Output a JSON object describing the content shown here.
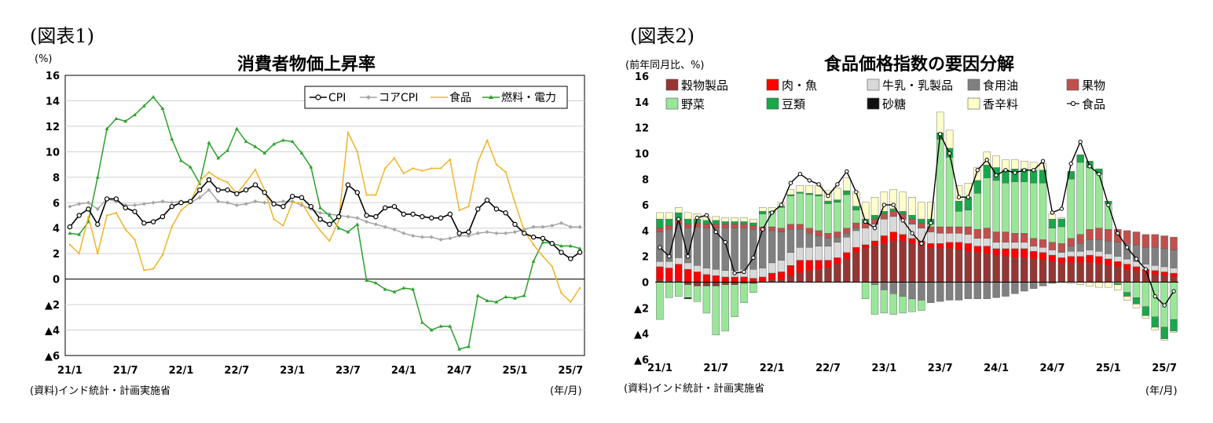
{
  "charts": [
    {
      "label": "(図表1)",
      "title": "消費者物価上昇率",
      "unit": "(%)",
      "source": "(資料)インド統計・計画実施省",
      "xunit": "(年/月)"
    },
    {
      "label": "(図表2)",
      "title": "食品価格指数の要因分解",
      "unit": "(前年同月比、%)",
      "source": "(資料)インド統計・計画実施省",
      "xunit": "(年/月)"
    }
  ],
  "chart_data": [
    {
      "type": "line",
      "title": "消費者物価上昇率",
      "ylabel": "(%)",
      "xlabel": "(年/月)",
      "ylim": [
        -6,
        16
      ],
      "yticks": [
        16,
        14,
        12,
        10,
        8,
        6,
        4,
        2,
        0,
        -2,
        -4,
        -6
      ],
      "ytick_labels": [
        "16",
        "14",
        "12",
        "10",
        "8",
        "6",
        "4",
        "2",
        "0",
        "▲2",
        "▲4",
        "▲6"
      ],
      "x_start": "2021/1",
      "x_tick_labels": [
        "21/1",
        "21/7",
        "22/1",
        "22/7",
        "23/1",
        "23/7",
        "24/1",
        "24/7",
        "25/1",
        "25/7"
      ],
      "grid": true,
      "legend_position": "top-right",
      "colors": {
        "CPI": "#000000",
        "コアCPI": "#a6a6a6",
        "食品": "#f0b429",
        "燃料・電力": "#2ca02c"
      },
      "series": [
        {
          "name": "CPI",
          "values": [
            4.1,
            5.0,
            5.5,
            4.3,
            6.3,
            6.3,
            5.6,
            5.3,
            4.4,
            4.5,
            4.9,
            5.7,
            6.0,
            6.1,
            7.0,
            7.8,
            7.0,
            7.0,
            6.7,
            7.0,
            7.4,
            6.8,
            5.9,
            5.7,
            6.5,
            6.4,
            5.7,
            4.7,
            4.3,
            4.9,
            7.4,
            6.8,
            5.0,
            4.9,
            5.6,
            5.7,
            5.1,
            5.1,
            4.9,
            4.8,
            4.8,
            5.1,
            3.6,
            3.7,
            5.5,
            6.2,
            5.5,
            5.2,
            4.3,
            3.6,
            3.3,
            3.2,
            2.8,
            2.1,
            1.6,
            2.1
          ]
        },
        {
          "name": "コアCPI",
          "values": [
            5.7,
            5.9,
            6.0,
            5.5,
            6.3,
            6.1,
            5.8,
            5.8,
            5.9,
            6.0,
            6.1,
            6.0,
            6.1,
            6.0,
            6.4,
            7.0,
            6.1,
            6.0,
            5.8,
            5.9,
            6.1,
            6.0,
            6.0,
            6.1,
            6.1,
            5.8,
            5.5,
            5.2,
            5.1,
            5.0,
            4.9,
            4.8,
            4.5,
            4.3,
            4.1,
            3.9,
            3.6,
            3.4,
            3.3,
            3.3,
            3.1,
            3.2,
            3.4,
            3.4,
            3.6,
            3.7,
            3.6,
            3.6,
            3.7,
            3.9,
            4.1,
            4.1,
            4.2,
            4.4,
            4.1,
            4.1
          ]
        },
        {
          "name": "食品",
          "values": [
            2.7,
            2.0,
            4.9,
            2.0,
            5.0,
            5.2,
            3.9,
            3.1,
            0.7,
            0.8,
            1.9,
            4.1,
            5.4,
            6.0,
            7.7,
            8.4,
            7.9,
            7.6,
            6.7,
            7.6,
            8.6,
            7.0,
            4.7,
            4.2,
            6.0,
            6.0,
            4.8,
            3.8,
            3.0,
            4.6,
            11.5,
            10.0,
            6.6,
            6.6,
            8.7,
            9.5,
            8.3,
            8.7,
            8.5,
            8.7,
            8.7,
            9.4,
            5.4,
            5.7,
            9.2,
            10.9,
            9.0,
            8.4,
            6.0,
            3.8,
            2.7,
            1.8,
            1.0,
            -1.1,
            -1.8,
            -0.7
          ]
        },
        {
          "name": "燃料・電力",
          "values": [
            3.6,
            3.5,
            4.5,
            8.0,
            11.8,
            12.6,
            12.4,
            12.9,
            13.6,
            14.3,
            13.4,
            11.0,
            9.3,
            8.8,
            7.5,
            10.7,
            9.5,
            10.1,
            11.8,
            10.8,
            10.4,
            9.9,
            10.6,
            10.9,
            10.8,
            9.9,
            8.8,
            5.6,
            5.0,
            4.0,
            3.7,
            4.3,
            -0.1,
            -0.3,
            -0.8,
            -1.0,
            -0.7,
            -0.8,
            -3.4,
            -4.0,
            -3.7,
            -3.7,
            -5.5,
            -5.3,
            -1.3,
            -1.7,
            -1.8,
            -1.4,
            -1.5,
            -1.3,
            1.4,
            2.9,
            2.8,
            2.6,
            2.6,
            2.4
          ]
        }
      ]
    },
    {
      "type": "bar",
      "stacked": true,
      "title": "食品価格指数の要因分解",
      "ylabel": "(前年同月比、%)",
      "xlabel": "(年/月)",
      "ylim": [
        -6,
        16
      ],
      "yticks": [
        16,
        14,
        12,
        10,
        8,
        6,
        4,
        2,
        0,
        -2,
        -4,
        -6
      ],
      "ytick_labels": [
        "16",
        "14",
        "12",
        "10",
        "8",
        "6",
        "4",
        "2",
        "0",
        "▲2",
        "▲4",
        "▲6"
      ],
      "x_start": "2021/1",
      "x_tick_labels": [
        "21/1",
        "21/7",
        "22/1",
        "22/7",
        "23/1",
        "23/7",
        "24/1",
        "24/7",
        "25/1",
        "25/7"
      ],
      "grid": false,
      "legend_position": "top",
      "colors": {
        "穀物製品": "#943634",
        "肉・魚": "#ff0000",
        "牛乳・乳製品": "#d9d9d9",
        "食用油": "#808080",
        "果物": "#c0504d",
        "野菜": "#99e699",
        "豆類": "#1aa64a",
        "砂糖": "#111111",
        "香辛料": "#ffffcc",
        "食品": "#000000"
      },
      "legend_order": [
        "穀物製品",
        "肉・魚",
        "牛乳・乳製品",
        "食用油",
        "果物",
        "野菜",
        "豆類",
        "砂糖",
        "香辛料",
        "食品"
      ],
      "series": [
        {
          "name": "穀物製品",
          "values": [
            0.2,
            0.1,
            0.1,
            -0.2,
            -0.3,
            -0.3,
            -0.3,
            -0.2,
            -0.2,
            -0.1,
            -0.1,
            0.0,
            0.2,
            0.2,
            0.5,
            0.7,
            0.9,
            1.0,
            1.1,
            1.4,
            1.8,
            2.3,
            2.6,
            2.8,
            3.0,
            3.2,
            3.2,
            3.0,
            2.9,
            2.7,
            2.6,
            2.6,
            2.5,
            2.4,
            2.3,
            2.2,
            2.1,
            2.0,
            1.9,
            1.9,
            1.8,
            1.7,
            1.6,
            1.5,
            1.5,
            1.5,
            1.5,
            1.4,
            1.3,
            1.2,
            1.0,
            0.9,
            0.7,
            0.6,
            0.5,
            0.4
          ]
        },
        {
          "name": "肉・魚",
          "values": [
            1.0,
            1.0,
            1.3,
            1.0,
            0.8,
            0.6,
            0.5,
            0.4,
            0.4,
            0.4,
            0.3,
            0.4,
            0.5,
            0.6,
            0.8,
            1.0,
            0.8,
            0.7,
            0.6,
            0.5,
            0.5,
            0.4,
            0.3,
            0.4,
            0.6,
            0.7,
            0.5,
            0.4,
            0.3,
            0.3,
            0.4,
            0.5,
            0.6,
            0.6,
            0.5,
            0.6,
            0.5,
            0.6,
            0.7,
            0.7,
            0.6,
            0.6,
            0.5,
            0.4,
            0.5,
            0.5,
            0.6,
            0.6,
            0.5,
            0.4,
            0.4,
            0.3,
            0.3,
            0.3,
            0.3,
            0.3
          ]
        },
        {
          "name": "牛乳・乳製品",
          "values": [
            0.4,
            0.5,
            0.5,
            0.5,
            0.5,
            0.5,
            0.5,
            0.5,
            0.5,
            0.6,
            0.7,
            0.7,
            0.8,
            0.9,
            1.0,
            1.0,
            1.0,
            1.1,
            1.1,
            1.2,
            1.2,
            1.3,
            1.3,
            1.3,
            1.3,
            1.2,
            1.2,
            1.1,
            1.0,
            0.9,
            0.8,
            0.7,
            0.7,
            0.7,
            0.6,
            0.6,
            0.5,
            0.5,
            0.5,
            0.5,
            0.4,
            0.4,
            0.4,
            0.4,
            0.4,
            0.4,
            0.4,
            0.4,
            0.4,
            0.4,
            0.4,
            0.4,
            0.4,
            0.4,
            0.4,
            0.4
          ]
        },
        {
          "name": "食用油",
          "values": [
            2.3,
            2.5,
            2.6,
            2.7,
            3.0,
            3.1,
            3.2,
            3.3,
            3.3,
            3.2,
            3.1,
            2.9,
            2.5,
            2.2,
            1.8,
            1.4,
            1.1,
            0.8,
            0.6,
            0.4,
            0.3,
            0.2,
            0.0,
            -0.2,
            -0.6,
            -0.9,
            -1.1,
            -1.3,
            -1.4,
            -1.6,
            -1.5,
            -1.4,
            -1.4,
            -1.3,
            -1.3,
            -1.3,
            -1.2,
            -1.1,
            -0.9,
            -0.7,
            -0.5,
            -0.3,
            -0.1,
            0.1,
            0.4,
            0.6,
            0.8,
            0.9,
            1.0,
            1.1,
            1.2,
            1.3,
            1.3,
            1.4,
            1.4,
            1.4
          ]
        },
        {
          "name": "果物",
          "values": [
            0.3,
            0.3,
            0.3,
            0.3,
            0.3,
            0.3,
            0.3,
            0.3,
            0.3,
            0.3,
            0.3,
            0.3,
            0.3,
            0.3,
            0.4,
            0.4,
            0.4,
            0.4,
            0.4,
            0.4,
            0.4,
            0.4,
            0.4,
            0.4,
            0.4,
            0.4,
            0.4,
            0.4,
            0.4,
            0.4,
            0.5,
            0.5,
            0.5,
            0.6,
            0.7,
            0.8,
            0.8,
            0.8,
            0.7,
            0.7,
            0.6,
            0.6,
            0.6,
            0.6,
            0.6,
            0.7,
            0.8,
            0.9,
            0.9,
            1.0,
            1.0,
            1.0,
            1.0,
            1.0,
            1.0,
            1.0
          ]
        },
        {
          "name": "野菜",
          "values": [
            -2.9,
            -1.2,
            -1.1,
            -1.0,
            -1.2,
            -2.1,
            -3.8,
            -3.6,
            -2.5,
            -1.5,
            -0.7,
            1.0,
            1.1,
            1.6,
            2.2,
            2.4,
            2.6,
            2.7,
            2.3,
            2.3,
            2.6,
            1.0,
            -1.3,
            -2.3,
            -1.8,
            -1.6,
            -1.3,
            -1.0,
            -0.8,
            0.2,
            6.8,
            5.4,
            1.2,
            1.3,
            2.8,
            3.9,
            4.0,
            3.8,
            4.0,
            4.0,
            4.3,
            4.4,
            1.1,
            1.3,
            4.6,
            5.6,
            4.8,
            4.2,
            2.0,
            -0.1,
            -0.8,
            -1.2,
            -1.9,
            -2.7,
            -3.5,
            -2.9
          ]
        },
        {
          "name": "豆類",
          "values": [
            0.7,
            0.5,
            0.6,
            0.4,
            0.3,
            0.3,
            0.3,
            0.2,
            0.2,
            0.2,
            0.2,
            0.2,
            0.1,
            0.1,
            0.1,
            0.1,
            0.1,
            0.1,
            0.2,
            0.2,
            0.3,
            0.3,
            0.3,
            0.3,
            0.2,
            0.2,
            0.2,
            0.3,
            0.3,
            0.4,
            0.5,
            0.7,
            0.8,
            1.0,
            1.0,
            1.0,
            1.0,
            1.0,
            1.0,
            1.0,
            1.0,
            1.0,
            0.7,
            0.6,
            0.6,
            0.6,
            0.5,
            0.4,
            0.2,
            -0.1,
            -0.3,
            -0.5,
            -0.7,
            -0.8,
            -0.9,
            -0.9
          ]
        },
        {
          "name": "砂糖",
          "values": [
            0.0,
            0.0,
            0.0,
            -0.1,
            0.0,
            0.0,
            0.0,
            0.0,
            0.0,
            0.0,
            0.0,
            0.0,
            0.0,
            0.0,
            0.0,
            0.0,
            0.0,
            0.0,
            0.0,
            0.0,
            0.0,
            0.0,
            0.0,
            0.0,
            0.0,
            0.0,
            0.0,
            0.0,
            0.0,
            0.0,
            0.0,
            0.0,
            0.0,
            0.0,
            0.0,
            0.0,
            0.0,
            0.0,
            0.0,
            0.0,
            0.0,
            0.0,
            0.0,
            0.0,
            0.0,
            0.0,
            0.0,
            0.0,
            0.0,
            0.0,
            0.0,
            0.0,
            0.0,
            0.0,
            0.0,
            0.0
          ]
        },
        {
          "name": "香辛料",
          "values": [
            0.5,
            0.5,
            0.4,
            0.5,
            0.4,
            0.3,
            0.3,
            0.3,
            0.3,
            0.3,
            0.3,
            0.3,
            0.3,
            0.3,
            0.4,
            0.5,
            0.6,
            0.7,
            0.8,
            0.9,
            1.0,
            1.1,
            1.3,
            1.4,
            1.5,
            1.5,
            1.5,
            1.4,
            1.3,
            1.3,
            1.6,
            1.4,
            1.2,
            1.1,
            1.0,
            1.0,
            0.9,
            0.8,
            0.7,
            0.6,
            0.6,
            0.5,
            0.4,
            0.1,
            -0.1,
            -0.2,
            -0.3,
            -0.4,
            -0.4,
            -0.4,
            -0.3,
            -0.3,
            -0.2,
            -0.2,
            -0.1,
            -0.1
          ]
        },
        {
          "name": "食品",
          "type": "line",
          "values": [
            2.7,
            2.0,
            4.9,
            2.0,
            5.0,
            5.2,
            3.9,
            3.1,
            0.7,
            0.8,
            1.9,
            4.1,
            5.4,
            6.0,
            7.7,
            8.4,
            7.9,
            7.6,
            6.7,
            7.6,
            8.6,
            7.0,
            4.7,
            4.2,
            6.0,
            6.0,
            4.8,
            3.8,
            3.0,
            4.6,
            11.5,
            10.0,
            6.6,
            6.6,
            8.7,
            9.5,
            8.3,
            8.7,
            8.5,
            8.7,
            8.7,
            9.4,
            5.4,
            5.7,
            9.2,
            10.9,
            9.0,
            8.4,
            6.0,
            3.8,
            2.7,
            1.8,
            1.0,
            -1.1,
            -1.8,
            -0.7
          ]
        }
      ]
    }
  ]
}
